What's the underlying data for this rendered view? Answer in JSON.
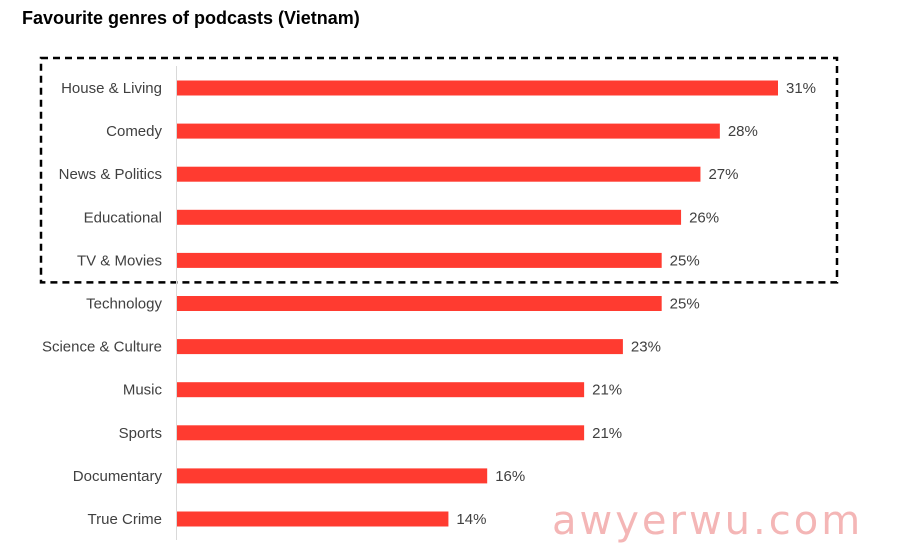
{
  "chart_data": {
    "type": "bar",
    "orientation": "horizontal",
    "title": "Favourite genres of podcasts (Vietnam)",
    "categories": [
      "House & Living",
      "Comedy",
      "News & Politics",
      "Educational",
      "TV & Movies",
      "Technology",
      "Science & Culture",
      "Music",
      "Sports",
      "Documentary",
      "True Crime"
    ],
    "values": [
      31,
      28,
      27,
      26,
      25,
      25,
      23,
      21,
      21,
      16,
      14
    ],
    "value_labels": [
      "31%",
      "28%",
      "27%",
      "26%",
      "25%",
      "25%",
      "23%",
      "21%",
      "21%",
      "16%",
      "14%"
    ],
    "unit": "%",
    "xlim": [
      0,
      31
    ],
    "grid": false,
    "highlight_categories": [
      "House & Living",
      "Comedy",
      "News & Politics",
      "Educational",
      "TV & Movies"
    ],
    "bar_color": "#ff3b30",
    "highlight_border_color": "#000000"
  },
  "watermark": "awyerwu.com"
}
